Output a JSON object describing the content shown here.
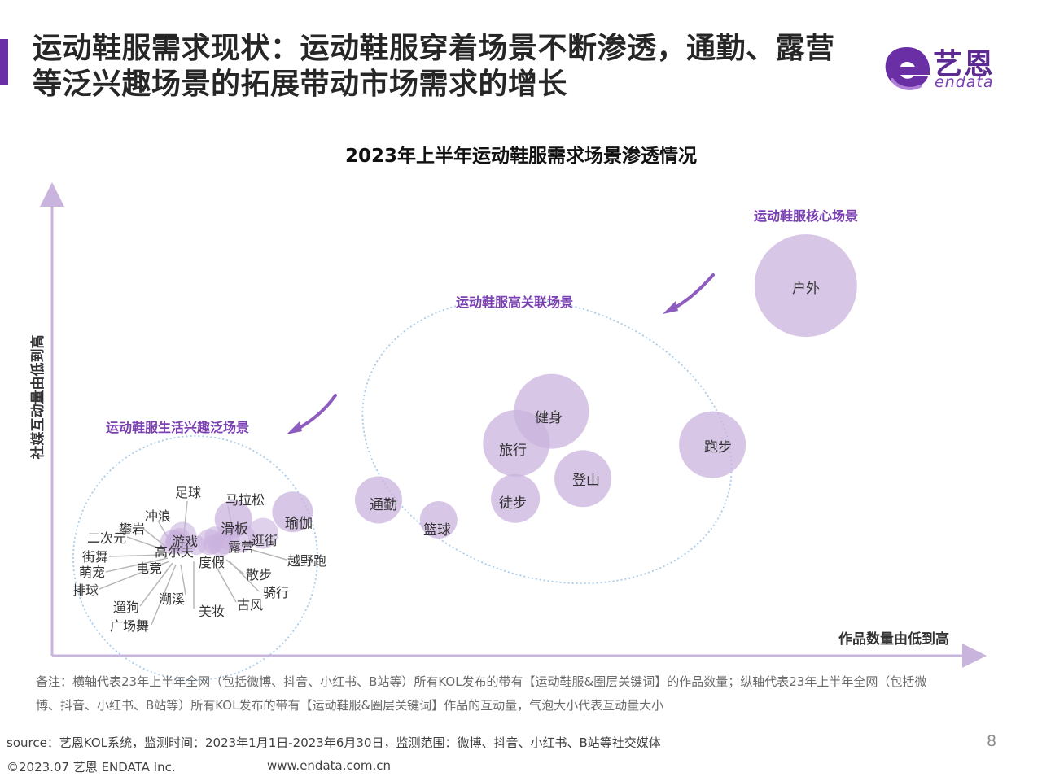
{
  "header": {
    "title_line1": "运动鞋服需求现状：运动鞋服穿着场景不断渗透，通勤、露营",
    "title_line2": "等泛兴趣场景的拓展带动市场需求的增长",
    "logo_cn": "艺恩",
    "logo_en": "endata",
    "accent_color": "#6b2fa5"
  },
  "chart_data": {
    "type": "scatter",
    "title": "2023年上半年运动鞋服需求场景渗透情况",
    "xlabel": "作品数量由低到高",
    "ylabel": "社媒互动量由低到高",
    "xlim": [
      0,
      100
    ],
    "ylim": [
      0,
      100
    ],
    "grid": false,
    "bubble_color": "#c9b3de",
    "groups": [
      {
        "label": "运动鞋服核心场景"
      },
      {
        "label": "运动鞋服高关联场景"
      },
      {
        "label": "运动鞋服生活兴趣泛场景"
      }
    ],
    "points": [
      {
        "label": "户外",
        "x": 81.5,
        "y": 79.8,
        "size": 63
      },
      {
        "label": "跑步",
        "x": 71.4,
        "y": 45.5,
        "size": 41
      },
      {
        "label": "健身",
        "x": 54.0,
        "y": 52.7,
        "size": 46
      },
      {
        "label": "旅行",
        "x": 50.2,
        "y": 45.8,
        "size": 41
      },
      {
        "label": "登山",
        "x": 57.4,
        "y": 38.2,
        "size": 35
      },
      {
        "label": "徒步",
        "x": 50.1,
        "y": 33.9,
        "size": 30
      },
      {
        "label": "通勤",
        "x": 35.3,
        "y": 33.6,
        "size": 29
      },
      {
        "label": "篮球",
        "x": 41.8,
        "y": 29.3,
        "size": 23
      },
      {
        "label": "瑜伽",
        "x": 26.0,
        "y": 31.0,
        "size": 25
      },
      {
        "label": "滑板",
        "x": 19.6,
        "y": 29.5,
        "size": 23
      },
      {
        "label": "逛街",
        "x": 22.8,
        "y": 26.4,
        "size": 19
      },
      {
        "label": "露营",
        "x": 20.4,
        "y": 25.4,
        "size": 18
      },
      {
        "label": "游戏",
        "x": 14.1,
        "y": 25.9,
        "size": 17
      },
      {
        "label": "度假",
        "x": 17.0,
        "y": 24.5,
        "size": 16
      },
      {
        "label": "高尔夫",
        "x": 13.0,
        "y": 24.5,
        "size": 15
      },
      {
        "label": "散步",
        "x": 18.2,
        "y": 24.0,
        "size": 15
      },
      {
        "label": "越野跑",
        "x": 19.0,
        "y": 25.5,
        "size": 15
      },
      {
        "label": "足球",
        "x": 13.8,
        "y": 25.3,
        "size": 13
      },
      {
        "label": "马拉松",
        "x": 17.6,
        "y": 25.6,
        "size": 13
      },
      {
        "label": "冲浪",
        "x": 13.6,
        "y": 24.8,
        "size": 12
      },
      {
        "label": "攀岩",
        "x": 13.3,
        "y": 25.1,
        "size": 11
      },
      {
        "label": "二次元",
        "x": 13.2,
        "y": 24.6,
        "size": 11
      },
      {
        "label": "街舞",
        "x": 13.1,
        "y": 24.4,
        "size": 10
      },
      {
        "label": "萌宠",
        "x": 13.2,
        "y": 24.2,
        "size": 10
      },
      {
        "label": "排球",
        "x": 13.4,
        "y": 24.0,
        "size": 10
      },
      {
        "label": "电竞",
        "x": 13.6,
        "y": 24.2,
        "size": 11
      },
      {
        "label": "遛狗",
        "x": 13.8,
        "y": 23.8,
        "size": 10
      },
      {
        "label": "广场舞",
        "x": 14.0,
        "y": 23.6,
        "size": 10
      },
      {
        "label": "溯溪",
        "x": 14.6,
        "y": 24.0,
        "size": 11
      },
      {
        "label": "美妆",
        "x": 15.6,
        "y": 23.8,
        "size": 12
      },
      {
        "label": "古风",
        "x": 17.4,
        "y": 24.0,
        "size": 12
      },
      {
        "label": "骑行",
        "x": 18.6,
        "y": 24.2,
        "size": 13
      }
    ]
  },
  "footer": {
    "note": "备注：横轴代表23年上半年全网（包括微博、抖音、小红书、B站等）所有KOL发布的带有【运动鞋服&圈层关键词】的作品数量；纵轴代表23年上半年全网（包括微博、抖音、小红书、B站等）所有KOL发布的带有【运动鞋服&圈层关键词】作品的互动量，气泡大小代表互动量大小",
    "source": "source：艺恩KOL系统，监测时间：2023年1月1日-2023年6月30日，监测范围：微博、抖音、小红书、B站等社交媒体",
    "page": "8",
    "copyright": "©2023.07 艺恩 ENDATA Inc.",
    "website": "www.endata.com.cn"
  }
}
